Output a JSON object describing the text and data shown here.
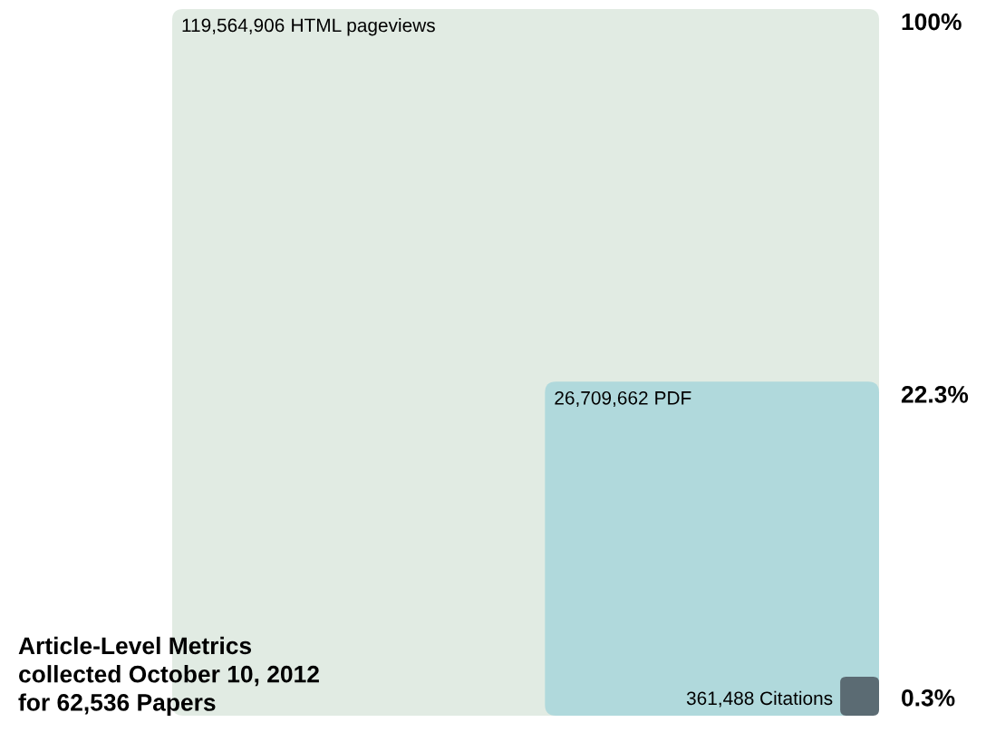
{
  "chart_data": {
    "type": "other",
    "title": "Article-Level Metrics\ncollected October 10, 2012\nfor 62,536 Papers",
    "categories": [
      "HTML pageviews",
      "PDF",
      "Citations"
    ],
    "values": [
      119564906,
      26709662,
      361488
    ],
    "value_labels": [
      "119,564,906",
      "26,709,662",
      "361,488"
    ],
    "colors": [
      "#e1ebe3",
      "#b0d9dc",
      "#5b6b73"
    ],
    "annotations": [
      "100%",
      "22.3%",
      "0.3%"
    ]
  }
}
